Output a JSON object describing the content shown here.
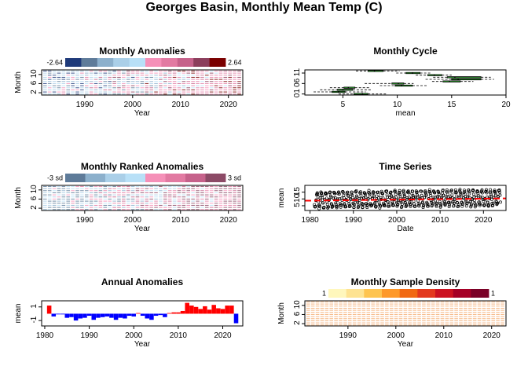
{
  "title": "Georges Basin, Monthly Mean Temp (C)",
  "chart_data": [
    {
      "id": "monthly-anomalies",
      "type": "heatmap",
      "title": "Monthly Anomalies",
      "xlabel": "Year",
      "ylabel": "Month",
      "xlim": [
        1981,
        2023
      ],
      "ylim": [
        1,
        12
      ],
      "xticks": [
        1990,
        2000,
        2010,
        2020
      ],
      "yticks": [
        2,
        6,
        10
      ],
      "legend": {
        "placement": "top",
        "min_label": "-2.64",
        "max_label": "2.64",
        "colors": [
          "#1f3a7a",
          "#5e7b99",
          "#8cb0cc",
          "#aacfe8",
          "#b8e0f7",
          "#f590b8",
          "#e27aa2",
          "#c6628b",
          "#8c3e5c",
          "#7a0000"
        ]
      }
    },
    {
      "id": "monthly-cycle",
      "type": "boxplot",
      "title": "Monthly Cycle",
      "xlabel": "mean",
      "ylabel": "",
      "xlim": [
        1.5,
        20
      ],
      "xticks": [
        5,
        10,
        15,
        20
      ],
      "ytick_labels": [
        "01",
        "06",
        "11"
      ],
      "ytick_months": [
        1,
        6,
        11
      ],
      "box_color": "#2fb52f",
      "months": [
        {
          "month": 1,
          "min": 4.6,
          "q1": 6.0,
          "median": 6.8,
          "q3": 7.3,
          "max": 9.1
        },
        {
          "month": 2,
          "min": 2.3,
          "q1": 4.0,
          "median": 4.6,
          "q3": 5.2,
          "max": 7.1
        },
        {
          "month": 3,
          "min": 2.9,
          "q1": 4.5,
          "median": 5.0,
          "q3": 5.9,
          "max": 7.6
        },
        {
          "month": 4,
          "min": 3.8,
          "q1": 5.1,
          "median": 5.5,
          "q3": 6.1,
          "max": 7.5
        },
        {
          "month": 5,
          "min": 8.4,
          "q1": 9.8,
          "median": 10.4,
          "q3": 11.4,
          "max": 12.7
        },
        {
          "month": 6,
          "min": 7.0,
          "q1": 9.5,
          "median": 10.1,
          "q3": 10.6,
          "max": 11.5
        },
        {
          "month": 7,
          "min": 13.2,
          "q1": 14.2,
          "median": 14.8,
          "q3": 15.8,
          "max": 17.0
        },
        {
          "month": 8,
          "min": 12.6,
          "q1": 15.0,
          "median": 15.6,
          "q3": 17.7,
          "max": 18.9
        },
        {
          "month": 9,
          "min": 13.3,
          "q1": 14.6,
          "median": 15.3,
          "q3": 17.7,
          "max": 18.6
        },
        {
          "month": 10,
          "min": 11.7,
          "q1": 12.8,
          "median": 13.4,
          "q3": 14.1,
          "max": 15.0
        },
        {
          "month": 11,
          "min": 9.9,
          "q1": 10.8,
          "median": 11.4,
          "q3": 12.1,
          "max": 13.1
        },
        {
          "month": 12,
          "min": 6.2,
          "q1": 7.3,
          "median": 7.9,
          "q3": 8.7,
          "max": 10.2
        }
      ]
    },
    {
      "id": "monthly-ranked-anomalies",
      "type": "heatmap",
      "title": "Monthly Ranked Anomalies",
      "xlabel": "Year",
      "ylabel": "Month",
      "xlim": [
        1981,
        2023
      ],
      "ylim": [
        1,
        12
      ],
      "xticks": [
        1990,
        2000,
        2010,
        2020
      ],
      "yticks": [
        2,
        6,
        10
      ],
      "legend": {
        "placement": "top",
        "min_label": "-3 sd",
        "max_label": "3 sd",
        "colors": [
          "#5e7b99",
          "#8cb0cc",
          "#aacfe8",
          "#b8e0f7",
          "#f590b8",
          "#e27aa2",
          "#c6628b",
          "#8c4a66"
        ]
      }
    },
    {
      "id": "time-series",
      "type": "scatter",
      "title": "Time Series",
      "xlabel": "Date",
      "ylabel": "mean",
      "xlim": [
        1978.8,
        2025.2
      ],
      "ylim": [
        1.5,
        20
      ],
      "xticks": [
        1980,
        1990,
        2000,
        2010,
        2020
      ],
      "yticks": [
        5,
        10,
        15
      ],
      "trend_color": "#ff0000",
      "start_year": 1981,
      "end_year": 2023,
      "monthly_cycle_means": [
        6.8,
        4.6,
        5.0,
        5.5,
        10.4,
        10.1,
        14.8,
        15.6,
        15.3,
        13.4,
        11.4,
        7.9
      ],
      "trend_start": 8.7,
      "trend_end": 10.4
    },
    {
      "id": "annual-anomalies",
      "type": "bar",
      "title": "Annual Anomalies",
      "xlabel": "Year",
      "ylabel": "mean",
      "xlim": [
        1979.3,
        2024.5
      ],
      "ylim": [
        -1.8,
        1.9
      ],
      "xticks": [
        1980,
        1990,
        2000,
        2010,
        2020
      ],
      "yticks": [
        -1,
        1
      ],
      "positive_color": "#ff0000",
      "negative_color": "#0000ff",
      "years": [
        1981,
        1982,
        1983,
        1984,
        1985,
        1986,
        1987,
        1988,
        1989,
        1990,
        1991,
        1992,
        1993,
        1994,
        1995,
        1996,
        1997,
        1998,
        1999,
        2000,
        2001,
        2002,
        2003,
        2004,
        2005,
        2006,
        2007,
        2008,
        2009,
        2010,
        2011,
        2012,
        2013,
        2014,
        2015,
        2016,
        2017,
        2018,
        2019,
        2020,
        2021,
        2022,
        2023
      ],
      "values": [
        1.2,
        -0.4,
        -0.1,
        -0.1,
        -0.6,
        -0.5,
        -1.0,
        -0.7,
        -0.6,
        -0.3,
        -0.9,
        -0.6,
        -0.5,
        -0.4,
        -0.6,
        -0.9,
        -0.6,
        -0.7,
        -0.3,
        -0.4,
        0.1,
        -0.3,
        -0.7,
        -0.9,
        -0.3,
        -0.2,
        -0.5,
        0.1,
        0.2,
        0.2,
        0.4,
        1.6,
        1.2,
        1.0,
        0.7,
        1.1,
        0.6,
        1.3,
        0.8,
        0.7,
        1.2,
        1.2,
        -1.4
      ]
    },
    {
      "id": "monthly-sample-density",
      "type": "heatmap",
      "title": "Monthly Sample Density",
      "xlabel": "Year",
      "ylabel": "Month",
      "xlim": [
        1981,
        2023
      ],
      "ylim": [
        1,
        12
      ],
      "xticks": [
        1990,
        2000,
        2010,
        2020
      ],
      "yticks": [
        2,
        6,
        10
      ],
      "cell_color": "#f5ad73",
      "legend": {
        "placement": "top",
        "min_label": "1",
        "max_label": "1",
        "colors": [
          "#fff7bc",
          "#fee391",
          "#fec44f",
          "#fe9929",
          "#f16913",
          "#e3391e",
          "#cc1221",
          "#a50026",
          "#7a0026"
        ]
      }
    }
  ]
}
